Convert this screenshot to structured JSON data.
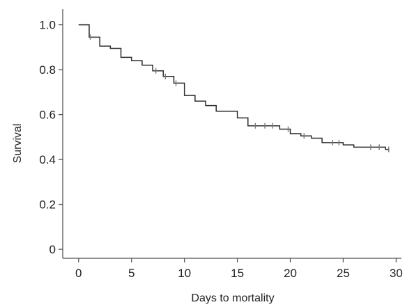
{
  "chart_data": {
    "type": "line",
    "step": "post",
    "xlabel": "Days to mortality",
    "ylabel": "Survival",
    "xlim": [
      -1.5,
      30.5
    ],
    "ylim": [
      -0.04,
      1.07
    ],
    "xticks": [
      0,
      5,
      10,
      15,
      20,
      25,
      30
    ],
    "yticks": [
      {
        "value": 0,
        "label": "0"
      },
      {
        "value": 0.2,
        "label": "0.2"
      },
      {
        "value": 0.4,
        "label": "0.4"
      },
      {
        "value": 0.6,
        "label": "0.6"
      },
      {
        "value": 0.8,
        "label": "0.8"
      },
      {
        "value": 1.0,
        "label": "1.0"
      }
    ],
    "grid": false,
    "line_color": "#2b2b2b",
    "censor_color": "#777777",
    "series": [
      {
        "x": [
          0,
          1,
          2,
          3,
          4,
          5,
          6,
          7,
          8,
          9,
          10,
          11,
          12,
          13,
          15,
          16,
          19,
          20,
          21,
          22,
          23,
          25,
          26,
          28,
          29
        ],
        "y": [
          1.0,
          0.945,
          0.905,
          0.895,
          0.855,
          0.84,
          0.82,
          0.795,
          0.77,
          0.74,
          0.685,
          0.66,
          0.64,
          0.615,
          0.585,
          0.55,
          0.535,
          0.515,
          0.505,
          0.495,
          0.475,
          0.465,
          0.455,
          0.455,
          0.445
        ],
        "censored_x": [
          1.1,
          7.3,
          8.2,
          9.2,
          16.7,
          17.6,
          18.3,
          19.8,
          21.3,
          24.0,
          24.6,
          27.6,
          28.4,
          29.3
        ]
      }
    ]
  }
}
